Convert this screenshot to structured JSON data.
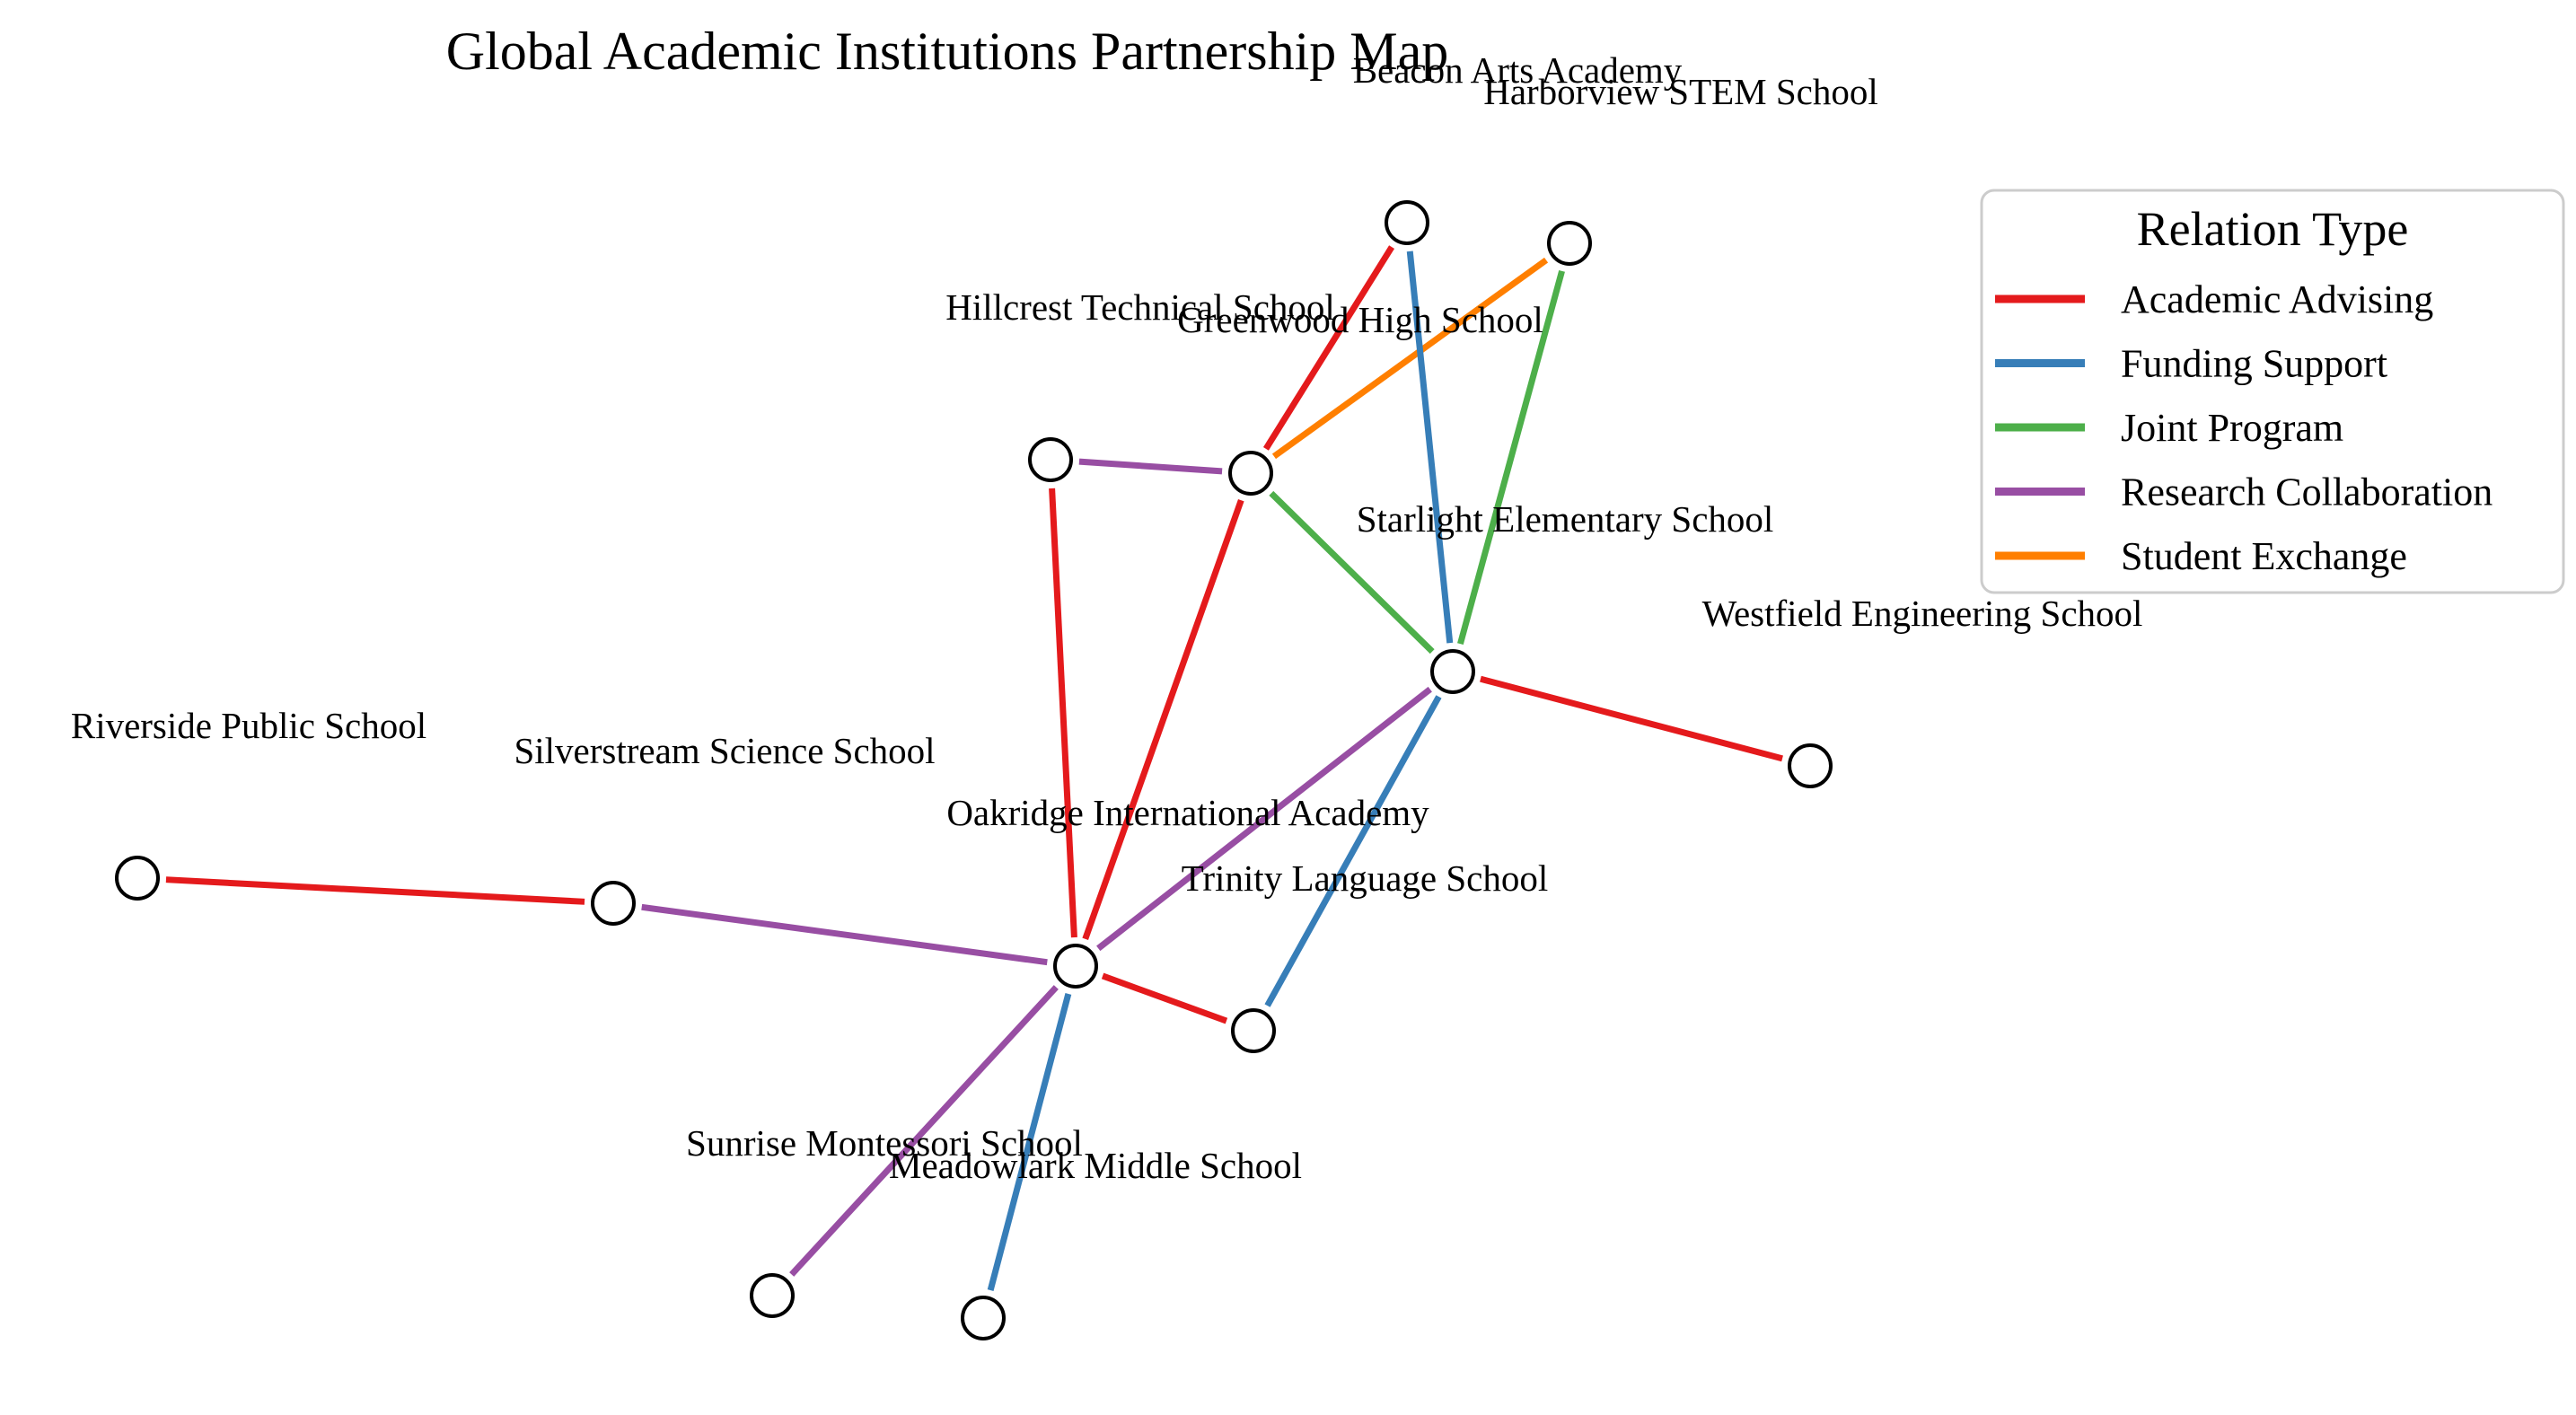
{
  "title": "Global Academic Institutions Partnership Map",
  "legend": {
    "title": "Relation Type",
    "items": [
      {
        "label": "Academic Advising",
        "color": "#e41a1c"
      },
      {
        "label": "Funding Support",
        "color": "#377eb8"
      },
      {
        "label": "Joint Program",
        "color": "#4daf4a"
      },
      {
        "label": "Research Collaboration",
        "color": "#984ea3"
      },
      {
        "label": "Student Exchange",
        "color": "#ff7f00"
      }
    ]
  },
  "nodes": [
    {
      "id": "beacon",
      "label": "Beacon Arts Academy"
    },
    {
      "id": "harborview",
      "label": "Harborview STEM School"
    },
    {
      "id": "hillcrest",
      "label": "Hillcrest Technical School"
    },
    {
      "id": "greenwood",
      "label": "Greenwood High School"
    },
    {
      "id": "starlight",
      "label": "Starlight Elementary School"
    },
    {
      "id": "westfield",
      "label": "Westfield Engineering School"
    },
    {
      "id": "riverside",
      "label": "Riverside Public School"
    },
    {
      "id": "silverstream",
      "label": "Silverstream Science School"
    },
    {
      "id": "oakridge",
      "label": "Oakridge International Academy"
    },
    {
      "id": "trinity",
      "label": "Trinity Language School"
    },
    {
      "id": "sunrise",
      "label": "Sunrise Montessori School"
    },
    {
      "id": "meadowlark",
      "label": "Meadowlark Middle School"
    }
  ],
  "edges": [
    {
      "source": "greenwood",
      "target": "beacon",
      "relation": "Academic Advising"
    },
    {
      "source": "greenwood",
      "target": "harborview",
      "relation": "Student Exchange"
    },
    {
      "source": "hillcrest",
      "target": "greenwood",
      "relation": "Research Collaboration"
    },
    {
      "source": "greenwood",
      "target": "starlight",
      "relation": "Joint Program"
    },
    {
      "source": "beacon",
      "target": "starlight",
      "relation": "Funding Support"
    },
    {
      "source": "harborview",
      "target": "starlight",
      "relation": "Joint Program"
    },
    {
      "source": "starlight",
      "target": "westfield",
      "relation": "Academic Advising"
    },
    {
      "source": "hillcrest",
      "target": "oakridge",
      "relation": "Academic Advising"
    },
    {
      "source": "greenwood",
      "target": "oakridge",
      "relation": "Academic Advising"
    },
    {
      "source": "starlight",
      "target": "oakridge",
      "relation": "Research Collaboration"
    },
    {
      "source": "starlight",
      "target": "trinity",
      "relation": "Funding Support"
    },
    {
      "source": "riverside",
      "target": "silverstream",
      "relation": "Academic Advising"
    },
    {
      "source": "silverstream",
      "target": "oakridge",
      "relation": "Research Collaboration"
    },
    {
      "source": "oakridge",
      "target": "trinity",
      "relation": "Academic Advising"
    },
    {
      "source": "oakridge",
      "target": "sunrise",
      "relation": "Research Collaboration"
    },
    {
      "source": "oakridge",
      "target": "meadowlark",
      "relation": "Funding Support"
    }
  ]
}
